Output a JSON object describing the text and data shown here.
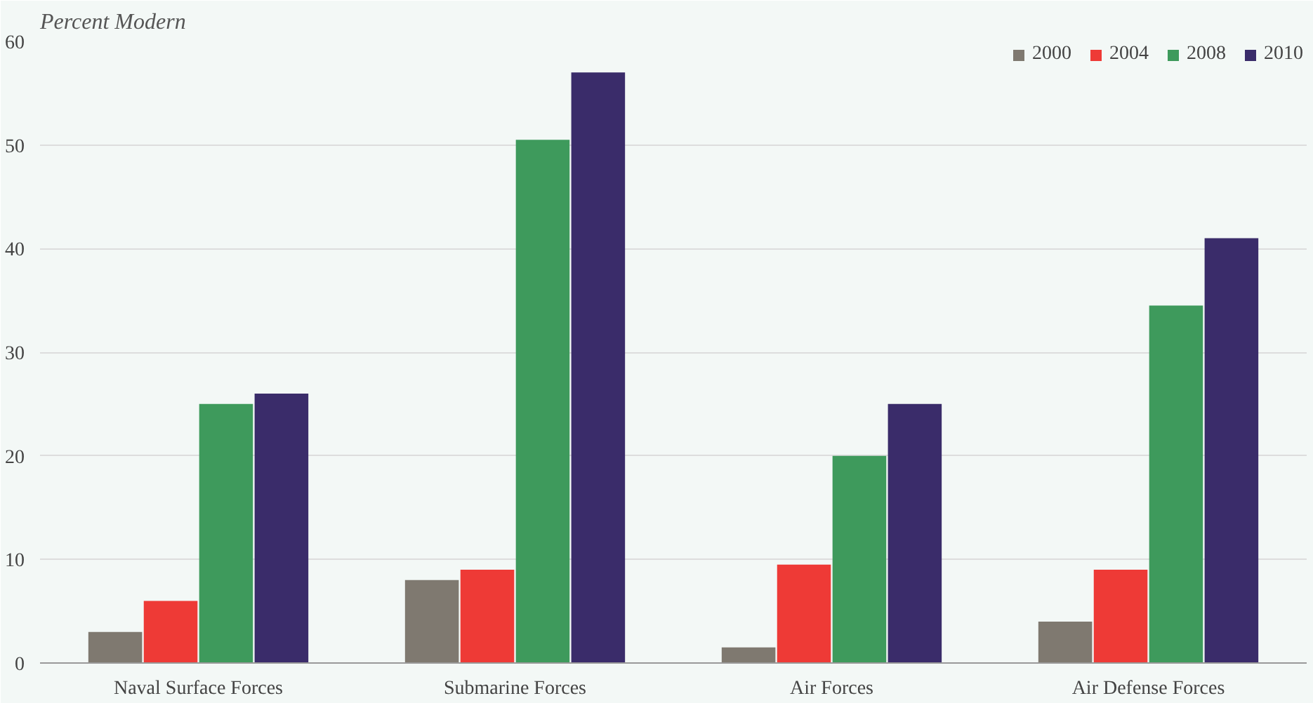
{
  "chart_data": {
    "type": "bar",
    "title": "Percent Modern",
    "categories": [
      "Naval Surface Forces",
      "Submarine Forces",
      "Air Forces",
      "Air Defense Forces"
    ],
    "series": [
      {
        "name": "2000",
        "color": "#7f7970",
        "values": [
          3,
          8,
          1.5,
          4
        ]
      },
      {
        "name": "2004",
        "color": "#ee3a36",
        "values": [
          6,
          9,
          9.5,
          9
        ]
      },
      {
        "name": "2008",
        "color": "#3e9a5c",
        "values": [
          25,
          50.5,
          20,
          34.5
        ]
      },
      {
        "name": "2010",
        "color": "#3a2c6a",
        "values": [
          26,
          57,
          25,
          41
        ]
      }
    ],
    "ylim": [
      0,
      60
    ],
    "yticks": [
      0,
      10,
      20,
      30,
      40,
      50,
      60
    ],
    "grid": "y",
    "legend": "top right"
  }
}
